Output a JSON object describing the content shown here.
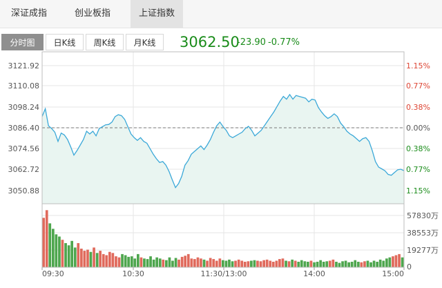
{
  "index_tabs": [
    {
      "label": "深证成指",
      "active": false
    },
    {
      "label": "创业板指",
      "active": false
    },
    {
      "label": "上证指数",
      "active": true
    }
  ],
  "period_tabs": [
    {
      "label": "分时图",
      "active": true
    },
    {
      "label": "日K线",
      "active": false
    },
    {
      "label": "周K线",
      "active": false
    },
    {
      "label": "月K线",
      "active": false
    }
  ],
  "quote": {
    "price": "3062.50",
    "change": "-23.90",
    "change_pct": "-0.77%"
  },
  "colors": {
    "up": "#dd4433",
    "down": "#1a8c1a",
    "line": "#3aa8d8",
    "fill": "#e9f5f1"
  },
  "chart_data": {
    "type": "line",
    "price_axis": {
      "ticks": [
        "3121.92",
        "3110.08",
        "3098.24",
        "3086.40",
        "3074.56",
        "3062.72",
        "3050.88"
      ],
      "pct_ticks": [
        "1.15%",
        "0.77%",
        "0.38%",
        "0.00%",
        "0.38%",
        "0.77%",
        "1.15%"
      ],
      "pct_colors": [
        "up",
        "up",
        "up",
        "neutral",
        "down",
        "down",
        "down"
      ],
      "prev_close": 3086.4,
      "ylim": [
        3045.0,
        3127.8
      ]
    },
    "volume_axis": {
      "ticks": [
        "57830万",
        "38553万",
        "19277万",
        "0"
      ],
      "ylim": [
        0,
        57830
      ]
    },
    "time_ticks": [
      "09:30",
      "10:30",
      "11:30/13:00",
      "14:00",
      "15:00"
    ],
    "price_series": [
      [
        0,
        3092.5
      ],
      [
        1,
        3096.8
      ],
      [
        2,
        3087.5
      ],
      [
        3,
        3086.0
      ],
      [
        4,
        3084.0
      ],
      [
        5,
        3079.0
      ],
      [
        6,
        3083.5
      ],
      [
        7,
        3082.5
      ],
      [
        8,
        3080.0
      ],
      [
        9,
        3076.0
      ],
      [
        10,
        3071.5
      ],
      [
        11,
        3074.0
      ],
      [
        12,
        3077.0
      ],
      [
        13,
        3080.0
      ],
      [
        14,
        3084.5
      ],
      [
        15,
        3083.0
      ],
      [
        16,
        3084.5
      ],
      [
        17,
        3082.0
      ],
      [
        18,
        3086.0
      ],
      [
        19,
        3087.0
      ],
      [
        20,
        3088.0
      ],
      [
        21,
        3088.2
      ],
      [
        22,
        3089.5
      ],
      [
        23,
        3092.5
      ],
      [
        24,
        3093.5
      ],
      [
        25,
        3093.0
      ],
      [
        26,
        3091.0
      ],
      [
        27,
        3087.0
      ],
      [
        28,
        3083.0
      ],
      [
        29,
        3081.0
      ],
      [
        30,
        3079.5
      ],
      [
        31,
        3081.0
      ],
      [
        32,
        3079.0
      ],
      [
        33,
        3078.0
      ],
      [
        34,
        3075.0
      ],
      [
        35,
        3072.0
      ],
      [
        36,
        3069.5
      ],
      [
        37,
        3067.5
      ],
      [
        38,
        3068.0
      ],
      [
        39,
        3066.0
      ],
      [
        40,
        3062.5
      ],
      [
        41,
        3058.0
      ],
      [
        42,
        3053.8
      ],
      [
        43,
        3056.0
      ],
      [
        44,
        3060.0
      ],
      [
        45,
        3066.0
      ],
      [
        46,
        3068.5
      ],
      [
        47,
        3072.0
      ],
      [
        48,
        3073.5
      ],
      [
        49,
        3075.0
      ],
      [
        50,
        3076.5
      ],
      [
        51,
        3074.5
      ],
      [
        52,
        3077.0
      ],
      [
        53,
        3080.0
      ],
      [
        54,
        3084.0
      ],
      [
        55,
        3087.5
      ],
      [
        56,
        3089.5
      ],
      [
        57,
        3087.0
      ],
      [
        58,
        3085.0
      ],
      [
        59,
        3082.0
      ],
      [
        60,
        3081.0
      ],
      [
        61,
        3082.0
      ],
      [
        62,
        3083.0
      ],
      [
        63,
        3084.0
      ],
      [
        64,
        3086.0
      ],
      [
        65,
        3087.2
      ],
      [
        66,
        3085.0
      ],
      [
        67,
        3082.0
      ],
      [
        68,
        3083.5
      ],
      [
        69,
        3085.0
      ],
      [
        70,
        3087.5
      ],
      [
        71,
        3090.0
      ],
      [
        72,
        3092.5
      ],
      [
        73,
        3095.0
      ],
      [
        74,
        3098.0
      ],
      [
        75,
        3101.0
      ],
      [
        76,
        3103.5
      ],
      [
        77,
        3102.0
      ],
      [
        78,
        3104.5
      ],
      [
        79,
        3102.0
      ],
      [
        80,
        3104.0
      ],
      [
        81,
        3103.5
      ],
      [
        82,
        3103.0
      ],
      [
        83,
        3102.5
      ],
      [
        84,
        3100.5
      ],
      [
        85,
        3102.0
      ],
      [
        86,
        3101.5
      ],
      [
        87,
        3097.5
      ],
      [
        88,
        3095.0
      ],
      [
        89,
        3093.0
      ],
      [
        90,
        3091.5
      ],
      [
        91,
        3092.5
      ],
      [
        92,
        3094.0
      ],
      [
        93,
        3092.5
      ],
      [
        94,
        3089.0
      ],
      [
        95,
        3087.0
      ],
      [
        96,
        3084.5
      ],
      [
        97,
        3083.0
      ],
      [
        98,
        3082.0
      ],
      [
        99,
        3080.5
      ],
      [
        100,
        3079.0
      ],
      [
        101,
        3080.5
      ],
      [
        102,
        3081.0
      ],
      [
        103,
        3079.0
      ],
      [
        104,
        3074.0
      ],
      [
        105,
        3068.0
      ],
      [
        106,
        3065.0
      ],
      [
        107,
        3064.0
      ],
      [
        108,
        3063.0
      ],
      [
        109,
        3061.0
      ],
      [
        110,
        3060.5
      ],
      [
        111,
        3062.0
      ],
      [
        112,
        3063.5
      ],
      [
        113,
        3063.8
      ],
      [
        114,
        3063.0
      ]
    ],
    "volume_series": [
      45000,
      52000,
      40000,
      35000,
      30000,
      28000,
      25000,
      22000,
      20000,
      24000,
      18000,
      22000,
      17000,
      15000,
      16000,
      14000,
      18000,
      13000,
      15000,
      12000,
      11000,
      14000,
      13000,
      10000,
      9000,
      12000,
      11000,
      9500,
      10000,
      8000,
      12000,
      9000,
      8000,
      7500,
      10000,
      7000,
      9000,
      8000,
      7000,
      6500,
      9000,
      6000,
      8500,
      7000,
      9500,
      10500,
      12000,
      8000,
      7500,
      9000,
      8000,
      7000,
      6000,
      8500,
      7500,
      6000,
      8000,
      6500,
      6000,
      7000,
      5500,
      6000,
      7000,
      6000,
      5000,
      5500,
      6000,
      6500,
      6000,
      5500,
      6500,
      7000,
      6000,
      5000,
      6000,
      7500,
      8000,
      6000,
      5500,
      7000,
      6000,
      5000,
      6500,
      5500,
      5000,
      6000,
      4500,
      5000,
      6500,
      5000,
      5500,
      6000,
      7000,
      5000,
      4000,
      5500,
      6000,
      4500,
      5000,
      6500,
      5000,
      4500,
      5500,
      6000,
      4500,
      6000,
      5000,
      7000,
      6000,
      8000,
      9000,
      10000,
      11000,
      12000,
      9000
    ]
  }
}
